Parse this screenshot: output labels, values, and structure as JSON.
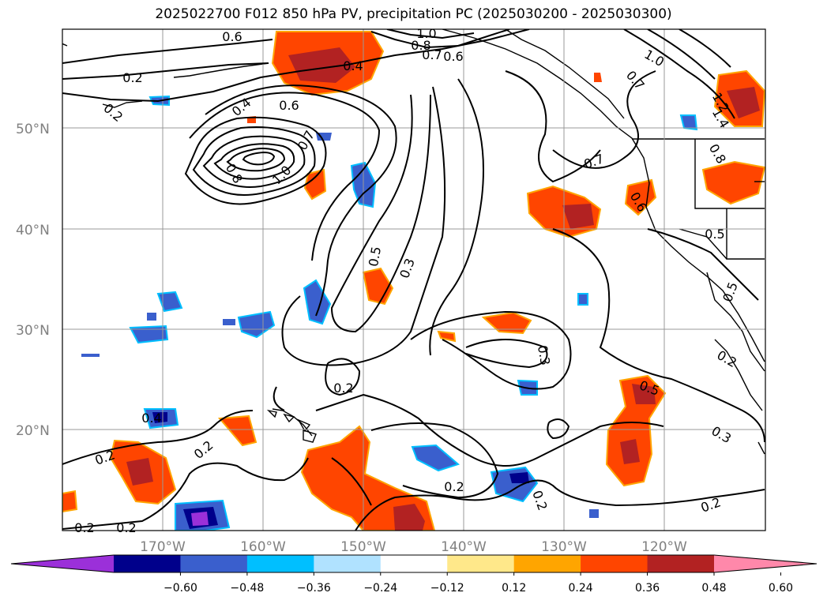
{
  "title": "2025022700 F012 850 hPa PV, precipitation PC (2025030200 - 2025030300)",
  "axes": {
    "lat_labels": [
      "50°N",
      "40°N",
      "30°N",
      "20°N"
    ],
    "lon_labels": [
      "170°W",
      "160°W",
      "150°W",
      "140°W",
      "130°W",
      "120°W"
    ]
  },
  "contour_labels": [
    "0.6",
    "1.0",
    "0.8",
    "0.7",
    "0.6",
    "0.4",
    "0.2",
    "0.2",
    "0.4",
    "0.6",
    "0.8",
    "1.0",
    "0.7",
    "1.0",
    "0.7",
    "1.2",
    "1.4",
    "0.7",
    "0.6",
    "0.8",
    "0.5",
    "0.5",
    "0.3",
    "0.5",
    "0.3",
    "0.2",
    "0.5",
    "0.2",
    "0.2",
    "0.2",
    "0.2",
    "0.2",
    "0.4",
    "0.3",
    "0.2",
    "0.2",
    "0.2"
  ],
  "colorbar": {
    "ticks": [
      "−0.60",
      "−0.48",
      "−0.36",
      "−0.24",
      "−0.12",
      "0.12",
      "0.24",
      "0.36",
      "0.48",
      "0.60"
    ],
    "colors": [
      "#9b30d9",
      "#00008b",
      "#3a5fcd",
      "#00bfff",
      "#b0e2ff",
      "#ffffff",
      "#ffe88a",
      "#ffa500",
      "#ff4500",
      "#b22222",
      "#ff88aa"
    ]
  },
  "chart_data": {
    "type": "map",
    "variable": "850 hPa PV, precipitation PC",
    "levels": [
      -0.6,
      -0.48,
      -0.36,
      -0.24,
      -0.12,
      0.12,
      0.24,
      0.36,
      0.48,
      0.6
    ],
    "lat_range": [
      10,
      60
    ],
    "lon_range": [
      -180,
      -110
    ],
    "grid": true
  }
}
